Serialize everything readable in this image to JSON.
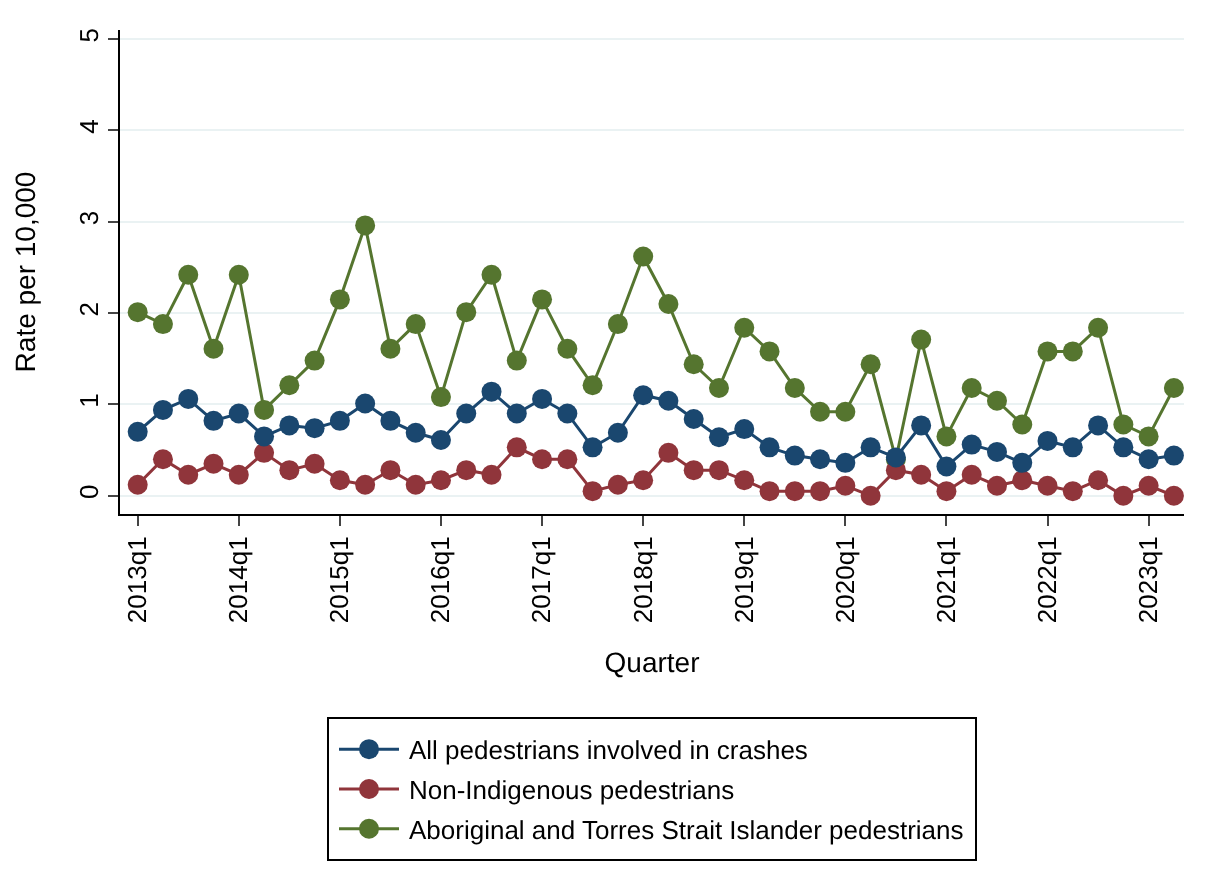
{
  "chart_data": {
    "type": "line",
    "xlabel": "Quarter",
    "ylabel": "Rate per 10,000",
    "categories": [
      "2013q1",
      null,
      null,
      null,
      "2014q1",
      null,
      null,
      null,
      "2015q1",
      null,
      null,
      null,
      "2016q1",
      null,
      null,
      null,
      "2017q1",
      null,
      null,
      null,
      "2018q1",
      null,
      null,
      null,
      "2019q1",
      null,
      null,
      null,
      "2020q1",
      null,
      null,
      null,
      "2021q1",
      null,
      null,
      null,
      "2022q1",
      null,
      null,
      null,
      "2023q1",
      null
    ],
    "series": [
      {
        "name": "All pedestrians involved in crashes",
        "color": "#1a476f",
        "values": [
          0.7,
          0.94,
          1.06,
          0.82,
          0.9,
          0.65,
          0.77,
          0.74,
          0.82,
          1.01,
          0.82,
          0.69,
          0.61,
          0.9,
          1.14,
          0.9,
          1.06,
          0.9,
          0.53,
          0.69,
          1.1,
          1.04,
          0.84,
          0.64,
          0.73,
          0.53,
          0.44,
          0.4,
          0.36,
          0.53,
          0.42,
          0.77,
          0.32,
          0.56,
          0.48,
          0.36,
          0.6,
          0.53,
          0.77,
          0.53,
          0.4,
          0.44
        ]
      },
      {
        "name": "Non-Indigenous pedestrians",
        "color": "#90353b",
        "values": [
          0.12,
          0.4,
          0.23,
          0.35,
          0.23,
          0.47,
          0.28,
          0.35,
          0.17,
          0.12,
          0.28,
          0.12,
          0.17,
          0.28,
          0.23,
          0.53,
          0.4,
          0.4,
          0.05,
          0.12,
          0.17,
          0.47,
          0.28,
          0.28,
          0.17,
          0.05,
          0.05,
          0.05,
          0.11,
          0.0,
          0.28,
          0.23,
          0.05,
          0.23,
          0.11,
          0.17,
          0.11,
          0.05,
          0.17,
          0.0,
          0.11,
          0.0
        ]
      },
      {
        "name": "Aboriginal and Torres Strait Islander pedestrians",
        "color": "#55752f",
        "values": [
          2.01,
          1.88,
          2.42,
          1.61,
          2.42,
          0.94,
          1.21,
          1.48,
          2.15,
          2.96,
          1.61,
          1.88,
          1.08,
          2.01,
          2.42,
          1.48,
          2.15,
          1.61,
          1.21,
          1.88,
          2.62,
          2.1,
          1.44,
          1.18,
          1.84,
          1.58,
          1.18,
          0.92,
          0.92,
          1.44,
          0.4,
          1.71,
          0.65,
          1.18,
          1.04,
          0.78,
          1.58,
          1.58,
          1.84,
          0.78,
          0.65,
          1.18
        ]
      }
    ],
    "ylim": [
      -0.2,
      5.1
    ],
    "yticks": [
      0,
      1,
      2,
      3,
      4,
      5
    ],
    "grid": "y",
    "legend": "bottom",
    "marker": "circle",
    "line_style": "solid"
  }
}
